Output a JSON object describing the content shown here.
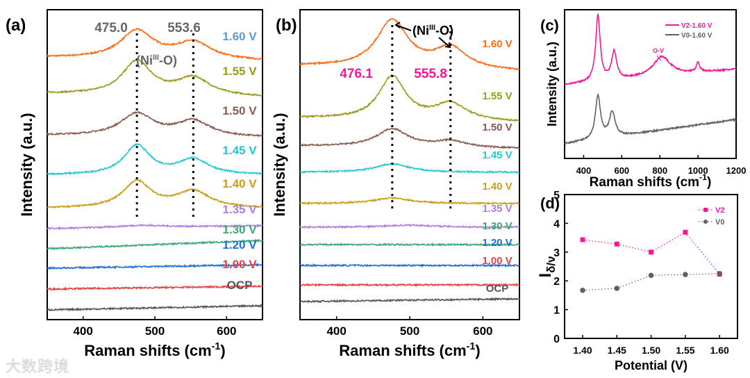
{
  "chart_data": [
    {
      "panel": "(a)",
      "type": "line",
      "xlabel": "Raman shifts (cm",
      "xlabel_sup": "-1",
      "xlabel_close": ")",
      "ylabel": "Intensity (a.u.)",
      "xlim": [
        350,
        650
      ],
      "xticks": [
        400,
        500,
        600
      ],
      "annotations": [
        {
          "text": "475.0",
          "x": 475.0
        },
        {
          "text": "553.6",
          "x": 553.6
        },
        {
          "text": "(Ni",
          "sup": "III",
          "tail": "-O)"
        }
      ],
      "series": [
        {
          "name": "1.60 V",
          "color": "#ff6a13",
          "label_color": "#5b9bd5",
          "offset": 377,
          "slope": -5,
          "peaks": [
            [
              475,
              40,
              28
            ],
            [
              553.6,
              24,
              30
            ]
          ]
        },
        {
          "name": "1.55 V",
          "color": "#9a9a1a",
          "label_color": "#9a9a1a",
          "offset": 325,
          "slope": -5,
          "peaks": [
            [
              475,
              48,
              25
            ],
            [
              553.6,
              25,
              28
            ]
          ]
        },
        {
          "name": "1.50 V",
          "color": "#8b5a50",
          "label_color": "#8b5a50",
          "offset": 265,
          "slope": -3,
          "peaks": [
            [
              475,
              32,
              28
            ],
            [
              553.6,
              22,
              28
            ]
          ]
        },
        {
          "name": "1.45 V",
          "color": "#22c8d0",
          "label_color": "#22c8d0",
          "offset": 208,
          "slope": 0,
          "peaks": [
            [
              475,
              42,
              22
            ],
            [
              553.6,
              22,
              26
            ]
          ]
        },
        {
          "name": "1.40 V",
          "color": "#c8a015",
          "label_color": "#c8a015",
          "offset": 160,
          "slope": 0,
          "peaks": [
            [
              475,
              38,
              24
            ],
            [
              553.6,
              24,
              28
            ]
          ]
        },
        {
          "name": "1.35 V",
          "color": "#b07de0",
          "label_color": "#b07de0",
          "offset": 131,
          "slope": 4,
          "peaks": [
            [
              480,
              3,
              40
            ]
          ]
        },
        {
          "name": "1.30 V",
          "color": "#3aa870",
          "label_color": "#3aa870",
          "offset": 102,
          "slope": 12,
          "peaks": []
        },
        {
          "name": "1.20 V",
          "color": "#1f6fe0",
          "label_color": "#1f6fe0",
          "offset": 74,
          "slope": 5,
          "peaks": []
        },
        {
          "name": "1.00 V",
          "color": "#e84040",
          "label_color": "#e84040",
          "offset": 44,
          "slope": 4,
          "peaks": []
        },
        {
          "name": "OCP",
          "color": "#555555",
          "label_color": "#555555",
          "offset": 14,
          "slope": 6,
          "peaks": []
        }
      ]
    },
    {
      "panel": "(b)",
      "type": "line",
      "xlabel": "Raman shifts (cm",
      "xlabel_sup": "-1",
      "xlabel_close": ")",
      "ylabel": "Intensity (a.u.)",
      "xlim": [
        350,
        650
      ],
      "xticks": [
        400,
        500,
        600
      ],
      "annotations": [
        {
          "text": "476.1",
          "x": 476.1
        },
        {
          "text": "555.8",
          "x": 555.8
        },
        {
          "text": "(Ni",
          "sup": "III",
          "tail": "-O)"
        }
      ],
      "series": [
        {
          "name": "1.60 V",
          "color": "#ff6a13",
          "label_color": "#ff6a13",
          "offset": 365,
          "slope": -8,
          "peaks": [
            [
              476.1,
              68,
              26
            ],
            [
              555.8,
              30,
              26
            ]
          ]
        },
        {
          "name": "1.55 V",
          "color": "#9a9a1a",
          "label_color": "#9a9a1a",
          "offset": 290,
          "slope": -6,
          "peaks": [
            [
              476.1,
              62,
              22
            ],
            [
              555.8,
              24,
              26
            ]
          ]
        },
        {
          "name": "1.50 V",
          "color": "#8b5a50",
          "label_color": "#8b5a50",
          "offset": 250,
          "slope": -4,
          "peaks": [
            [
              476.1,
              26,
              26
            ],
            [
              555.8,
              9,
              26
            ]
          ]
        },
        {
          "name": "1.45 V",
          "color": "#22c8d0",
          "label_color": "#22c8d0",
          "offset": 212,
          "slope": 0,
          "peaks": [
            [
              476.1,
              12,
              28
            ]
          ]
        },
        {
          "name": "1.40 V",
          "color": "#c8a015",
          "label_color": "#c8a015",
          "offset": 167,
          "slope": 0,
          "peaks": [
            [
              476.1,
              8,
              30
            ]
          ]
        },
        {
          "name": "1.35 V",
          "color": "#b07de0",
          "label_color": "#b07de0",
          "offset": 133,
          "slope": 0,
          "peaks": [
            [
              500,
              3,
              40
            ]
          ]
        },
        {
          "name": "1.30 V",
          "color": "#3aa870",
          "label_color": "#3aa870",
          "offset": 108,
          "slope": 0,
          "peaks": []
        },
        {
          "name": "1.20 V",
          "color": "#1f6fe0",
          "label_color": "#1f6fe0",
          "offset": 78,
          "slope": 0,
          "peaks": []
        },
        {
          "name": "1.00 V",
          "color": "#e84040",
          "label_color": "#e84040",
          "offset": 50,
          "slope": 0,
          "peaks": []
        },
        {
          "name": "OCP",
          "color": "#555555",
          "label_color": "#555555",
          "offset": 26,
          "slope": 4,
          "peaks": []
        }
      ]
    },
    {
      "panel": "(c)",
      "type": "line",
      "xlabel": "Raman shifts (cm",
      "xlabel_sup": "-1",
      "xlabel_close": ")",
      "ylabel": "Intensity (a.u.)",
      "xlim": [
        300,
        1200
      ],
      "xticks": [
        400,
        600,
        800,
        1000,
        1200
      ],
      "annotation": "O-V",
      "legend_position": "top-right",
      "series": [
        {
          "name": "V2-1.60 V",
          "color": "#ff1493",
          "offset": 106,
          "slope": 22,
          "peaks": [
            [
              475,
              95,
              14
            ],
            [
              560,
              40,
              16
            ],
            [
              810,
              28,
              55
            ],
            [
              1000,
              14,
              10
            ]
          ]
        },
        {
          "name": "V0-1.60 V",
          "color": "#606060",
          "offset": 21,
          "slope": 35,
          "peaks": [
            [
              475,
              62,
              16
            ],
            [
              550,
              36,
              18
            ]
          ]
        }
      ]
    },
    {
      "panel": "(d)",
      "type": "line",
      "xlabel": "Potential (V)",
      "ylabel": "I",
      "ylabel_sub": "δ/ν",
      "ylim": [
        0,
        5
      ],
      "yticks": [
        0,
        1,
        2,
        3,
        4,
        5
      ],
      "categories": [
        "1.40",
        "1.45",
        "1.50",
        "1.55",
        "1.60"
      ],
      "legend_position": "top-right",
      "series": [
        {
          "name": "V2",
          "color": "#ff1493",
          "marker": "square",
          "values": [
            3.43,
            3.28,
            3.0,
            3.69,
            2.23
          ]
        },
        {
          "name": "V0",
          "color": "#606060",
          "marker": "circle",
          "values": [
            1.67,
            1.74,
            2.19,
            2.22,
            2.25
          ]
        }
      ]
    }
  ],
  "watermark": "大数跨境"
}
